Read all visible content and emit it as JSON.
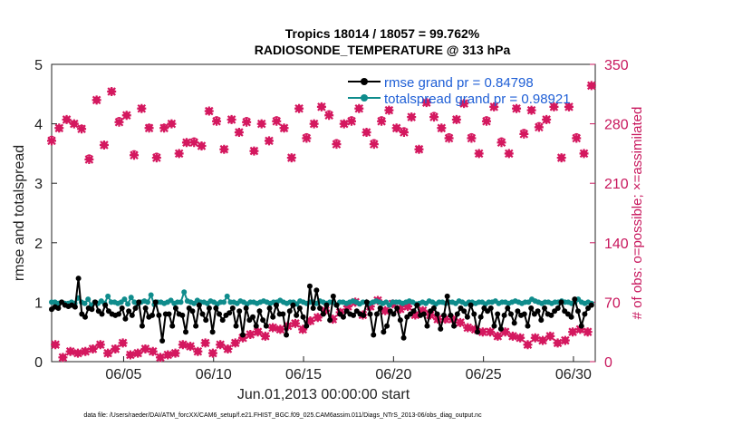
{
  "chart_data": {
    "type": "line",
    "title_line1": "Tropics 18014 / 18057 = 99.762%",
    "title_line2": "RADIOSONDE_TEMPERATURE @ 313 hPa",
    "xlabel": "Jun.01,2013 00:00:00 start",
    "ylabel_left": "rmse and totalspread",
    "ylabel_right": "# of obs: o=possible; ×=assimilated",
    "xlim": [
      1,
      31
    ],
    "ylim_left": [
      0,
      5
    ],
    "ylim_right": [
      0,
      350
    ],
    "x_ticks": [
      5,
      10,
      15,
      20,
      25,
      30
    ],
    "x_tick_labels": [
      "06/05",
      "06/10",
      "06/15",
      "06/20",
      "06/25",
      "06/30"
    ],
    "y_left_ticks": [
      "0",
      "1",
      "2",
      "3",
      "4",
      "5"
    ],
    "y_right_ticks": [
      "0",
      "70",
      "140",
      "210",
      "280",
      "350"
    ],
    "legend": [
      {
        "name": "rmse grand pr = 0.84798",
        "color": "#000000"
      },
      {
        "name": "totalspread grand pr = 0.98921",
        "color": "#0f8c8c"
      }
    ],
    "series_rmse": [
      0.88,
      0.92,
      0.9,
      1.0,
      0.95,
      0.93,
      0.95,
      0.92,
      1.4,
      0.8,
      0.75,
      0.9,
      0.88,
      1.0,
      0.85,
      0.8,
      0.95,
      0.85,
      0.8,
      0.78,
      0.8,
      0.9,
      0.72,
      0.85,
      0.78,
      0.9,
      1.0,
      0.6,
      0.9,
      0.75,
      0.78,
      1.0,
      0.78,
      0.35,
      0.8,
      0.8,
      0.6,
      0.9,
      0.8,
      0.78,
      0.5,
      0.9,
      0.85,
      0.6,
      0.95,
      0.8,
      0.7,
      0.9,
      0.5,
      0.9,
      0.8,
      0.7,
      0.78,
      0.82,
      0.9,
      0.6,
      0.85,
      0.45,
      0.9,
      0.7,
      0.75,
      0.6,
      0.85,
      0.7,
      0.6,
      0.9,
      0.75,
      0.95,
      0.8,
      0.8,
      0.45,
      0.85,
      0.95,
      0.78,
      0.9,
      0.75,
      0.6,
      1.27,
      0.9,
      1.2,
      0.9,
      0.8,
      0.95,
      0.7,
      1.1,
      0.95,
      0.8,
      0.75,
      0.85,
      0.8,
      0.78,
      0.85,
      0.8,
      0.78,
      1.0,
      0.8,
      0.45,
      0.8,
      0.9,
      0.5,
      0.6,
      0.85,
      0.8,
      0.9,
      0.7,
      0.4,
      0.75,
      0.8,
      0.85,
      0.95,
      0.78,
      0.8,
      0.6,
      0.85,
      0.9,
      0.8,
      0.55,
      0.78,
      1.1,
      0.78,
      0.6,
      0.8,
      0.9,
      0.85,
      0.75,
      0.95,
      0.8,
      0.5,
      0.75,
      0.9,
      0.85,
      0.9,
      0.6,
      0.8,
      0.55,
      0.78,
      0.9,
      0.8,
      0.65,
      0.85,
      0.78,
      0.8,
      0.6,
      0.9,
      0.8,
      0.85,
      0.7,
      0.9,
      0.8,
      0.78,
      0.85,
      0.9,
      1.0,
      0.85,
      0.8,
      0.75,
      1.05,
      0.85,
      0.6,
      0.8,
      0.9,
      0.95
    ],
    "series_spread": [
      1.0,
      1.0,
      0.98,
      1.0,
      0.98,
      0.98,
      1.0,
      0.98,
      1.07,
      1.0,
      0.98,
      1.05,
      0.95,
      1.0,
      0.98,
      1.02,
      0.98,
      1.1,
      1.0,
      1.0,
      0.98,
      1.0,
      1.05,
      0.97,
      1.08,
      1.0,
      0.97,
      1.0,
      1.02,
      1.0,
      1.12,
      0.96,
      1.0,
      1.0,
      0.98,
      1.0,
      1.03,
      0.98,
      1.0,
      1.0,
      1.17,
      1.02,
      1.0,
      0.98,
      1.03,
      1.0,
      1.0,
      0.98,
      1.02,
      1.0,
      0.97,
      1.0,
      1.0,
      1.1,
      1.0,
      1.0,
      0.98,
      1.02,
      1.0,
      0.97,
      1.0,
      1.0,
      0.98,
      1.0,
      1.02,
      1.0,
      0.98,
      1.0,
      1.0,
      1.03,
      1.0,
      0.98,
      1.0,
      1.0,
      0.97,
      1.02,
      1.0,
      0.98,
      1.0,
      1.0,
      0.98,
      1.02,
      1.0,
      0.98,
      1.0,
      1.0,
      0.95,
      1.0,
      1.0,
      0.98,
      1.0,
      1.02,
      1.0,
      0.97,
      1.0,
      1.0,
      0.98,
      1.0,
      1.02,
      1.0,
      0.98,
      1.0,
      0.95,
      1.0,
      1.0,
      1.0,
      0.98,
      1.0,
      1.02,
      1.0,
      0.97,
      0.98,
      1.0,
      0.98,
      1.02,
      1.0,
      0.97,
      1.0,
      1.0,
      0.98,
      1.0,
      1.0,
      0.98,
      1.02,
      1.0,
      0.97,
      1.0,
      1.0,
      0.98,
      1.0,
      1.0,
      0.97,
      1.0,
      1.0,
      1.02,
      0.98,
      1.0,
      1.0,
      0.98,
      1.0,
      1.02,
      1.0,
      0.98,
      1.0,
      1.0,
      1.05,
      1.02,
      1.0,
      0.98,
      1.0,
      1.0,
      0.98,
      1.0,
      1.0,
      1.02,
      1.0,
      1.0,
      0.98,
      1.0,
      1.05,
      1.0,
      0.98,
      1.0,
      0.98
    ],
    "obs_possible": [
      262,
      20,
      275,
      5,
      285,
      12,
      280,
      10,
      275,
      12,
      240,
      15,
      308,
      20,
      255,
      10,
      318,
      15,
      284,
      22,
      290,
      8,
      245,
      10,
      298,
      15,
      276,
      12,
      242,
      5,
      276,
      8,
      280,
      10,
      245,
      20,
      258,
      18,
      260,
      12,
      254,
      22,
      295,
      10,
      285,
      20,
      250,
      15,
      285,
      22,
      270,
      28,
      284,
      32,
      248,
      35,
      280,
      30,
      260,
      40,
      285,
      38,
      275,
      42,
      240,
      45,
      298,
      38,
      265,
      48,
      280,
      52,
      300,
      60,
      292,
      50,
      258,
      58,
      280,
      65,
      285,
      70,
      298,
      55,
      270,
      65,
      258,
      72,
      285,
      60,
      296,
      68,
      275,
      62,
      272,
      65,
      288,
      55,
      250,
      60,
      305,
      55,
      290,
      50,
      275,
      50,
      265,
      50,
      285,
      46,
      304,
      40,
      265,
      38,
      245,
      35,
      285,
      35,
      300,
      30,
      260,
      35,
      245,
      30,
      298,
      28,
      270,
      20,
      296,
      28,
      278,
      25,
      285,
      30,
      300,
      22,
      240,
      25,
      300,
      35,
      265,
      38,
      245,
      35,
      325
    ],
    "obs_assimilated": [
      260,
      20,
      275,
      5,
      285,
      12,
      280,
      10,
      274,
      12,
      238,
      15,
      308,
      20,
      255,
      10,
      318,
      15,
      282,
      22,
      290,
      8,
      243,
      10,
      298,
      15,
      275,
      12,
      240,
      5,
      275,
      8,
      280,
      10,
      245,
      20,
      258,
      18,
      258,
      12,
      254,
      22,
      295,
      10,
      283,
      20,
      250,
      15,
      285,
      22,
      270,
      28,
      282,
      32,
      248,
      35,
      280,
      30,
      260,
      40,
      283,
      38,
      275,
      42,
      240,
      45,
      298,
      38,
      263,
      48,
      280,
      52,
      300,
      60,
      290,
      50,
      256,
      58,
      280,
      65,
      283,
      70,
      298,
      55,
      270,
      65,
      256,
      72,
      283,
      60,
      296,
      68,
      275,
      62,
      270,
      65,
      288,
      55,
      250,
      60,
      305,
      55,
      288,
      50,
      275,
      50,
      263,
      50,
      285,
      46,
      304,
      40,
      263,
      38,
      245,
      35,
      283,
      35,
      300,
      30,
      258,
      35,
      245,
      30,
      298,
      28,
      268,
      20,
      296,
      28,
      276,
      25,
      285,
      30,
      300,
      22,
      240,
      25,
      300,
      35,
      263,
      38,
      245,
      35,
      325
    ]
  },
  "footnote": "data file: /Users/raeder/DAI/ATM_forcXX/CAM6_setup/f.e21.FHIST_BGC.f09_025.CAM6assim.011/Diags_NTrS_2013-06/obs_diag_output.nc",
  "colors": {
    "rmse": "#000000",
    "spread": "#0f8c8c",
    "obs": "#d4185f"
  }
}
